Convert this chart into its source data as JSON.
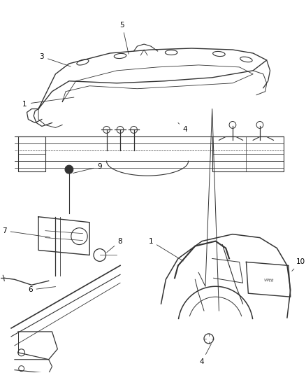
{
  "bg_color": "#ffffff",
  "line_color": "#333333",
  "label_color": "#000000",
  "fig_width": 4.38,
  "fig_height": 5.33,
  "dpi": 100
}
